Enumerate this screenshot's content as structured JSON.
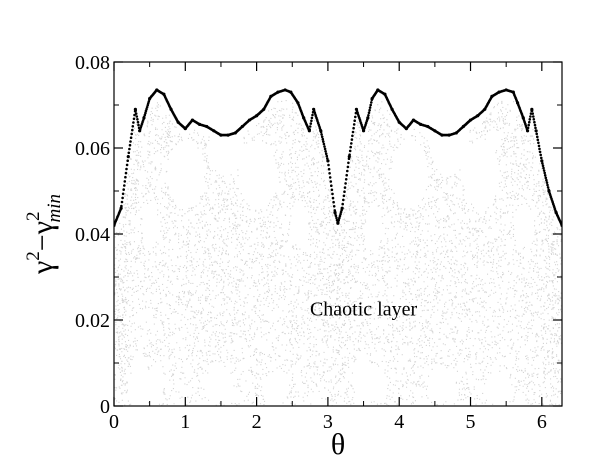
{
  "chart_data": {
    "type": "scatter",
    "xlabel": "θ",
    "ylabel_main": "γ",
    "ylabel_sup": "2",
    "ylabel_minus": "−",
    "ylabel_sub": "min",
    "xlim": [
      0,
      6.283
    ],
    "ylim": [
      0,
      0.08
    ],
    "x_ticks": [
      0,
      1,
      2,
      3,
      4,
      5,
      6
    ],
    "x_tick_labels": [
      "0",
      "1",
      "2",
      "3",
      "4",
      "5",
      "6"
    ],
    "y_ticks": [
      0,
      0.02,
      0.04,
      0.06,
      0.08
    ],
    "y_tick_labels": [
      "0",
      "0.02",
      "0.04",
      "0.06",
      "0.08"
    ],
    "annotation": "Chaotic layer",
    "annotation_at": {
      "x": 3.5,
      "y": 0.021
    },
    "grid": false,
    "legend": "none",
    "colors": {
      "boundary": "#000000",
      "chaotic": "#d4d4d4"
    },
    "series": [
      {
        "role": "boundary-curve",
        "x": [
          0.0,
          0.1,
          0.2,
          0.3,
          0.36,
          0.42,
          0.5,
          0.6,
          0.7,
          0.8,
          0.9,
          1.0,
          1.1,
          1.2,
          1.3,
          1.4,
          1.5,
          1.6,
          1.7,
          1.8,
          1.9,
          2.0,
          2.1,
          2.2,
          2.3,
          2.4,
          2.48,
          2.58,
          2.66,
          2.74,
          2.8,
          2.9,
          3.0,
          3.1,
          3.14,
          3.2,
          3.3,
          3.4,
          3.5,
          3.56,
          3.62,
          3.7,
          3.8,
          3.9,
          4.0,
          4.1,
          4.2,
          4.3,
          4.4,
          4.5,
          4.6,
          4.7,
          4.8,
          4.9,
          5.0,
          5.1,
          5.2,
          5.3,
          5.4,
          5.5,
          5.6,
          5.66,
          5.74,
          5.8,
          5.86,
          5.92,
          6.0,
          6.1,
          6.2,
          6.283
        ],
        "y": [
          0.042,
          0.046,
          0.058,
          0.069,
          0.064,
          0.067,
          0.0715,
          0.0735,
          0.0725,
          0.069,
          0.066,
          0.0645,
          0.0665,
          0.0655,
          0.065,
          0.064,
          0.063,
          0.063,
          0.0635,
          0.065,
          0.0665,
          0.0675,
          0.069,
          0.072,
          0.073,
          0.0735,
          0.073,
          0.0705,
          0.067,
          0.064,
          0.069,
          0.064,
          0.057,
          0.045,
          0.0425,
          0.046,
          0.058,
          0.069,
          0.064,
          0.067,
          0.0715,
          0.0735,
          0.0725,
          0.069,
          0.066,
          0.0645,
          0.0665,
          0.0655,
          0.065,
          0.064,
          0.063,
          0.063,
          0.0635,
          0.065,
          0.0665,
          0.0675,
          0.069,
          0.072,
          0.073,
          0.0735,
          0.073,
          0.0705,
          0.067,
          0.064,
          0.069,
          0.064,
          0.057,
          0.05,
          0.045,
          0.042
        ]
      }
    ]
  }
}
